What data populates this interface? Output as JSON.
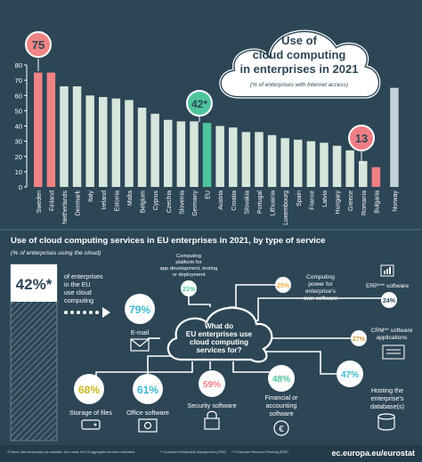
{
  "title": {
    "line1": "Use of",
    "line2": "cloud computing",
    "line3": "in enterprises in 2021",
    "subtitle": "(% of enterprises with internet access)"
  },
  "badges": {
    "max": "75",
    "eu": "42*",
    "min": "13"
  },
  "section2": {
    "title": "Use of cloud computing services in EU enterprises in 2021, by type of service",
    "subtitle": "(% of enterprises using the cloud)",
    "eu_pct": "42%*",
    "eu_text": [
      "of enterprises",
      "in the EU",
      "use cloud",
      "computing"
    ],
    "center": [
      "What do",
      "EU enterprises use",
      "cloud computing",
      "services for?"
    ]
  },
  "services": [
    {
      "pct": "79%",
      "label": [
        "E-mail"
      ],
      "icon": "envelope-icon"
    },
    {
      "pct": "21%",
      "label": [
        "Computing",
        "platform for",
        "app development, testing",
        "or deployment"
      ],
      "icon": ""
    },
    {
      "pct": "25%",
      "label": [
        "Computing",
        "power for",
        "enterprise's",
        "own software"
      ],
      "icon": ""
    },
    {
      "pct": "24%",
      "label": [
        "ERP*** software"
      ],
      "icon": "erp-icon"
    },
    {
      "pct": "27%",
      "label": [
        "CRM** software",
        "applications"
      ],
      "icon": "crm-icon"
    },
    {
      "pct": "68%",
      "label": [
        "Storage of files"
      ],
      "icon": "storage-icon"
    },
    {
      "pct": "61%",
      "label": [
        "Office software"
      ],
      "icon": "gear-icon"
    },
    {
      "pct": "59%",
      "label": [
        "Security software"
      ],
      "icon": "lock-icon"
    },
    {
      "pct": "48%",
      "label": [
        "Financial or",
        "accounting",
        "software"
      ],
      "icon": "euro-icon"
    },
    {
      "pct": "47%",
      "label": [
        "Hosting the",
        "enterprise's",
        "database(s)"
      ],
      "icon": "database-icon"
    }
  ],
  "footnotes": {
    "f1": "*Poland: data temporarily not available. As a result, the EU aggregate has been estimated.",
    "f2": "** Customer Relationship Management (CRM)",
    "f3": "*** Enterprise Resource Planning (ERP)",
    "source": "ec.europa.eu/eurostat"
  },
  "colors": {
    "bg": "#2c4656",
    "bar": "#d6e6dc",
    "max": "#f08383",
    "eu": "#4ec49e",
    "min": "#f07e85",
    "norway": "#c3d2d8",
    "yellow": "#e9e15a",
    "cyan": "#3bb9ce"
  },
  "chart_data": {
    "type": "bar",
    "title": "Use of cloud computing in enterprises in 2021",
    "subtitle": "(% of enterprises with internet access)",
    "categories": [
      "Sweden",
      "Finland",
      "Netherlands",
      "Denmark",
      "Italy",
      "Ireland",
      "Estonia",
      "Malta",
      "Belgium",
      "Cyprus",
      "Czechia",
      "Slovenia",
      "Germany",
      "EU",
      "Austria",
      "Croatia",
      "Slovakia",
      "Portugal",
      "Lithuania",
      "Luxembourg",
      "Spain",
      "France",
      "Latvia",
      "Hungary",
      "Greece",
      "Romania",
      "Bulgaria",
      "Norway"
    ],
    "values": [
      75,
      75,
      66,
      66,
      60,
      59,
      58,
      57,
      52,
      48,
      44,
      43,
      43,
      42,
      40,
      39,
      36,
      36,
      34,
      32,
      31,
      30,
      29,
      27,
      24,
      17,
      13,
      65
    ],
    "ylim": [
      0,
      80
    ],
    "yticks": [
      0,
      10,
      20,
      30,
      40,
      50,
      60,
      70,
      80
    ],
    "grid": false
  }
}
